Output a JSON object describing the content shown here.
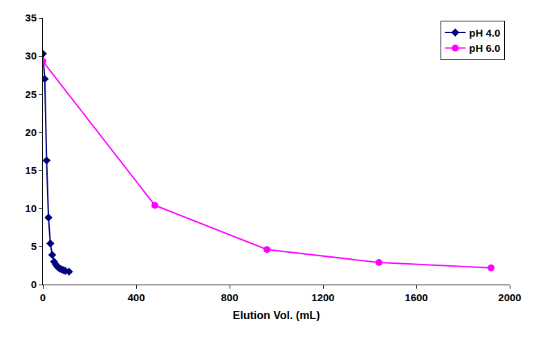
{
  "chart_data": {
    "type": "line",
    "x_label": "Elution Vol. (mL)",
    "xlim": [
      0,
      2000
    ],
    "xticks": [
      0,
      400,
      800,
      1200,
      1600,
      2000
    ],
    "ylim": [
      0,
      35
    ],
    "yticks": [
      0,
      5,
      10,
      15,
      20,
      25,
      30,
      35
    ],
    "grid": false,
    "legend": "top right",
    "series": [
      {
        "name": "pH 4.0",
        "color": "#000080",
        "marker": "diamond",
        "line_style": "solid",
        "x": [
          0,
          8,
          16,
          24,
          32,
          40,
          48,
          56,
          64,
          72,
          80,
          88,
          96,
          112
        ],
        "values": [
          30.3,
          27.0,
          16.3,
          8.8,
          5.4,
          3.9,
          3.0,
          2.6,
          2.3,
          2.1,
          2.0,
          1.9,
          1.8,
          1.7
        ]
      },
      {
        "name": "pH 6.0",
        "color": "#FF00FF",
        "marker": "circle",
        "line_style": "solid",
        "x": [
          0,
          480,
          960,
          1440,
          1920
        ],
        "values": [
          29.3,
          10.4,
          4.6,
          2.9,
          2.2
        ]
      }
    ]
  }
}
